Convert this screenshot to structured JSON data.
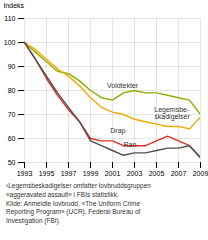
{
  "chart_data": {
    "type": "line",
    "x": [
      1993,
      1994,
      1995,
      1996,
      1997,
      1998,
      1999,
      2000,
      2001,
      2002,
      2003,
      2004,
      2005,
      2006,
      2007,
      2008,
      2009
    ],
    "series": [
      {
        "name": "Voldtekter",
        "color": "#8db000",
        "values": [
          100,
          96,
          92,
          88,
          87,
          84,
          80,
          77,
          76,
          79,
          80,
          79,
          79,
          78,
          77,
          76,
          70
        ]
      },
      {
        "name": "Legemsbeskadigelser",
        "color": "#f5a800",
        "values": [
          100,
          97,
          93,
          89,
          86,
          82,
          77,
          73,
          71,
          70,
          68,
          67,
          66,
          65,
          65,
          64,
          69
        ]
      },
      {
        "name": "Drap",
        "color": "#e03020",
        "values": [
          100,
          93,
          85,
          78,
          72,
          67,
          60,
          59,
          59,
          57,
          57,
          57,
          59,
          61,
          59,
          57,
          52
        ]
      },
      {
        "name": "Ran",
        "color": "#505050",
        "values": [
          100,
          93,
          86,
          79,
          73,
          67,
          59,
          57,
          55,
          53,
          54,
          54,
          55,
          56,
          56,
          57,
          52
        ]
      }
    ],
    "ylabel": "Indeks",
    "xlim": [
      1993,
      2009
    ],
    "xticks": [
      1993,
      1995,
      1997,
      1999,
      2001,
      2003,
      2005,
      2007,
      2009
    ],
    "ylim": [
      50,
      110
    ],
    "yticks": [
      50,
      60,
      70,
      80,
      90,
      100,
      110
    ],
    "grid": true,
    "annotations": [
      {
        "text": "Voldtekter",
        "x": 2000.5,
        "y": 81
      },
      {
        "text": "Legemsbe-\nskadigelser",
        "x": 2004.8,
        "y": 68
      },
      {
        "text": "Drap",
        "x": 2000.8,
        "y": 62.5
      },
      {
        "text": "Ran",
        "x": 2002.0,
        "y": 56.5
      }
    ],
    "footnote": "¹Legemsbeskadigelser omfatter lovbruddsgruppen\n«aggeravated assault» i FBIs statistikk.\nKilde: Anmeldte lovbrudd, «The Uniform Crime\nReporting Program» (UCR), Federal Bureau of\nInvestigation (FBI)."
  }
}
